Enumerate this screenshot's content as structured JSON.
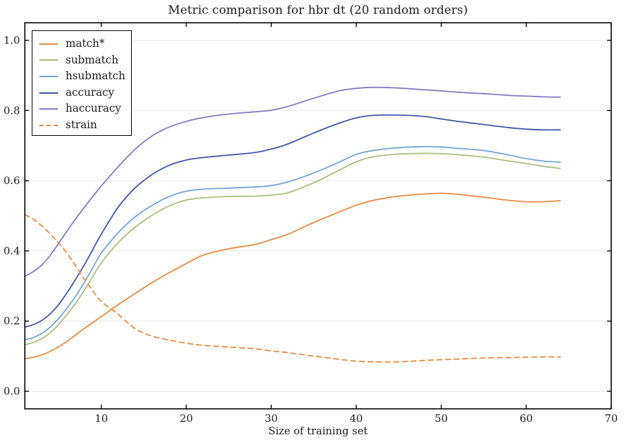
{
  "chart_data": {
    "type": "line",
    "title": "Metric comparison for hbr dt (20 random orders)",
    "xlabel": "Size of training set",
    "ylabel": "",
    "xlim": [
      1,
      70
    ],
    "ylim": [
      -0.05,
      1.05
    ],
    "xticks": [
      10,
      20,
      30,
      40,
      50,
      60,
      70
    ],
    "yticks": [
      0.0,
      0.2,
      0.4,
      0.6,
      0.8,
      1.0
    ],
    "ytick_labels": [
      "0.0",
      "0.2",
      "0.4",
      "0.6",
      "0.8",
      "1.0"
    ],
    "grid": "horizontal",
    "grid_color": "#e7e7e7",
    "spine_color": "#000000",
    "legend_position": "upper left",
    "x": [
      1,
      2,
      3,
      4,
      5,
      6,
      7,
      8,
      9,
      10,
      12,
      14,
      16,
      18,
      20,
      22,
      25,
      28,
      30,
      32,
      35,
      38,
      40,
      42,
      45,
      48,
      50,
      52,
      55,
      58,
      60,
      62,
      64
    ],
    "series": [
      {
        "name": "match*",
        "color": "#e8883e",
        "dash": "solid",
        "values": [
          0.093,
          0.097,
          0.104,
          0.114,
          0.127,
          0.143,
          0.161,
          0.179,
          0.196,
          0.213,
          0.247,
          0.279,
          0.31,
          0.338,
          0.364,
          0.388,
          0.406,
          0.418,
          0.432,
          0.448,
          0.481,
          0.511,
          0.53,
          0.544,
          0.556,
          0.562,
          0.564,
          0.561,
          0.553,
          0.544,
          0.54,
          0.54,
          0.543
        ]
      },
      {
        "name": "submatch",
        "color": "#a9bd7a",
        "dash": "solid",
        "values": [
          0.133,
          0.139,
          0.15,
          0.167,
          0.191,
          0.22,
          0.252,
          0.288,
          0.327,
          0.366,
          0.424,
          0.468,
          0.502,
          0.528,
          0.545,
          0.551,
          0.555,
          0.556,
          0.559,
          0.566,
          0.594,
          0.63,
          0.654,
          0.668,
          0.676,
          0.678,
          0.677,
          0.674,
          0.667,
          0.656,
          0.649,
          0.641,
          0.635
        ]
      },
      {
        "name": "hsubmatch",
        "color": "#74a3d6",
        "dash": "solid",
        "values": [
          0.147,
          0.153,
          0.165,
          0.183,
          0.208,
          0.238,
          0.272,
          0.31,
          0.352,
          0.394,
          0.452,
          0.497,
          0.53,
          0.555,
          0.57,
          0.576,
          0.579,
          0.582,
          0.586,
          0.597,
          0.622,
          0.653,
          0.675,
          0.686,
          0.694,
          0.697,
          0.696,
          0.692,
          0.686,
          0.673,
          0.663,
          0.656,
          0.653
        ]
      },
      {
        "name": "accuracy",
        "color": "#3e56a8",
        "dash": "solid",
        "values": [
          0.183,
          0.19,
          0.202,
          0.221,
          0.248,
          0.282,
          0.32,
          0.36,
          0.404,
          0.448,
          0.525,
          0.58,
          0.618,
          0.644,
          0.659,
          0.666,
          0.673,
          0.68,
          0.69,
          0.705,
          0.736,
          0.764,
          0.779,
          0.786,
          0.787,
          0.783,
          0.776,
          0.769,
          0.76,
          0.751,
          0.747,
          0.745,
          0.745
        ]
      },
      {
        "name": "haccuracy",
        "color": "#8578bb",
        "dash": "solid",
        "values": [
          0.328,
          0.341,
          0.36,
          0.388,
          0.422,
          0.458,
          0.492,
          0.524,
          0.555,
          0.585,
          0.64,
          0.69,
          0.728,
          0.753,
          0.769,
          0.78,
          0.79,
          0.796,
          0.801,
          0.812,
          0.835,
          0.856,
          0.863,
          0.866,
          0.864,
          0.859,
          0.856,
          0.852,
          0.848,
          0.843,
          0.841,
          0.839,
          0.838
        ]
      },
      {
        "name": "strain",
        "color": "#e8883e",
        "dash": "dashed",
        "values": [
          0.503,
          0.49,
          0.471,
          0.448,
          0.422,
          0.392,
          0.357,
          0.32,
          0.286,
          0.256,
          0.219,
          0.178,
          0.157,
          0.146,
          0.137,
          0.131,
          0.126,
          0.121,
          0.115,
          0.11,
          0.1,
          0.091,
          0.086,
          0.084,
          0.084,
          0.088,
          0.09,
          0.092,
          0.095,
          0.096,
          0.097,
          0.098,
          0.098
        ]
      }
    ]
  }
}
